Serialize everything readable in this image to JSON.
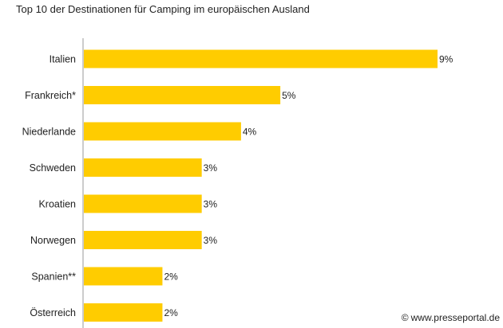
{
  "chart_data": {
    "type": "bar",
    "orientation": "horizontal",
    "title": "Top 10 der Destinationen für Camping im europäischen Ausland",
    "categories": [
      "Italien",
      "Frankreich*",
      "Niederlande",
      "Schweden",
      "Kroatien",
      "Norwegen",
      "Spanien**",
      "Österreich"
    ],
    "values": [
      9,
      5,
      4,
      3,
      3,
      3,
      2,
      2
    ],
    "value_labels": [
      "9%",
      "5%",
      "4%",
      "3%",
      "3%",
      "3%",
      "2%",
      "2%"
    ],
    "unit": "%",
    "xlim": [
      0,
      9
    ],
    "grid": false,
    "legend": "none",
    "bar_color": "#FFCC00",
    "axis_color": "#999999"
  },
  "watermark": {
    "symbol": "©",
    "text": "www.presseportal.de"
  }
}
